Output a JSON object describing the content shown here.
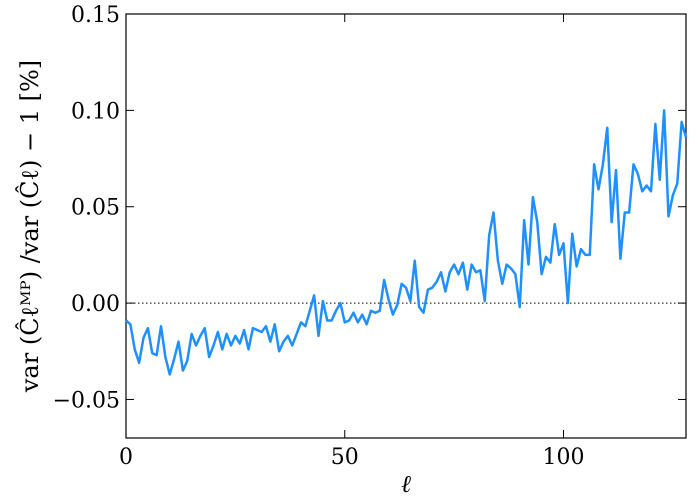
{
  "chart_data": {
    "type": "line",
    "xlabel": "ℓ",
    "ylabel": "var (Ĉℓᴹᴾ) /var (Ĉℓ) − 1 [%]",
    "xlim": [
      0,
      128
    ],
    "ylim": [
      -0.07,
      0.15
    ],
    "xticks": [
      0,
      50,
      100
    ],
    "xtick_labels": [
      "0",
      "50",
      "100"
    ],
    "yticks": [
      -0.05,
      0.0,
      0.05,
      0.1,
      0.15
    ],
    "ytick_labels": [
      "−0.05",
      "0.00",
      "0.05",
      "0.10",
      "0.15"
    ],
    "grid": false,
    "reference_line": {
      "y": 0.0,
      "style": "dotted",
      "color": "#000000"
    },
    "line_color": "#1e90ff",
    "series": [
      {
        "x": [
          0,
          1,
          2,
          3,
          4,
          5,
          6,
          7,
          8,
          9,
          10,
          11,
          12,
          13,
          14,
          15,
          16,
          17,
          18,
          19,
          20,
          21,
          22,
          23,
          24,
          25,
          26,
          27,
          28,
          29,
          30,
          31,
          32,
          33,
          34,
          35,
          36,
          37,
          38,
          39,
          40,
          41,
          42,
          43,
          44,
          45,
          46,
          47,
          48,
          49,
          50,
          51,
          52,
          53,
          54,
          55,
          56,
          57,
          58,
          59,
          60,
          61,
          62,
          63,
          64,
          65,
          66,
          67,
          68,
          69,
          70,
          71,
          72,
          73,
          74,
          75,
          76,
          77,
          78,
          79,
          80,
          81,
          82,
          83,
          84,
          85,
          86,
          87,
          88,
          89,
          90,
          91,
          92,
          93,
          94,
          95,
          96,
          97,
          98,
          99,
          100,
          101,
          102,
          103,
          104,
          105,
          106,
          107,
          108,
          109,
          110,
          111,
          112,
          113,
          114,
          115,
          116,
          117,
          118,
          119,
          120,
          121,
          122,
          123,
          124,
          125,
          126,
          127,
          128
        ],
        "y": [
          -0.009,
          -0.011,
          -0.024,
          -0.031,
          -0.018,
          -0.013,
          -0.026,
          -0.027,
          -0.012,
          -0.028,
          -0.037,
          -0.029,
          -0.02,
          -0.035,
          -0.03,
          -0.016,
          -0.022,
          -0.017,
          -0.013,
          -0.028,
          -0.022,
          -0.015,
          -0.024,
          -0.016,
          -0.022,
          -0.017,
          -0.021,
          -0.014,
          -0.024,
          -0.013,
          -0.014,
          -0.015,
          -0.012,
          -0.02,
          -0.011,
          -0.025,
          -0.02,
          -0.017,
          -0.022,
          -0.016,
          -0.01,
          -0.012,
          -0.004,
          0.004,
          -0.017,
          0.001,
          -0.009,
          -0.009,
          -0.004,
          0.0,
          -0.01,
          -0.009,
          -0.005,
          -0.01,
          -0.006,
          -0.011,
          -0.004,
          -0.005,
          -0.004,
          0.012,
          0.002,
          -0.006,
          -0.001,
          0.01,
          0.008,
          0.001,
          0.022,
          -0.002,
          -0.005,
          0.007,
          0.008,
          0.011,
          0.016,
          0.006,
          0.016,
          0.02,
          0.015,
          0.021,
          0.007,
          0.02,
          0.016,
          0.017,
          0.001,
          0.035,
          0.047,
          0.022,
          0.01,
          0.02,
          0.018,
          0.015,
          -0.002,
          0.043,
          0.02,
          0.055,
          0.042,
          0.015,
          0.024,
          0.021,
          0.041,
          0.025,
          0.031,
          0.0,
          0.036,
          0.019,
          0.028,
          0.025,
          0.025,
          0.072,
          0.059,
          0.072,
          0.091,
          0.042,
          0.069,
          0.023,
          0.047,
          0.047,
          0.072,
          0.067,
          0.058,
          0.061,
          0.058,
          0.093,
          0.064,
          0.1,
          0.045,
          0.056,
          0.062,
          0.094,
          0.086
        ]
      }
    ]
  }
}
